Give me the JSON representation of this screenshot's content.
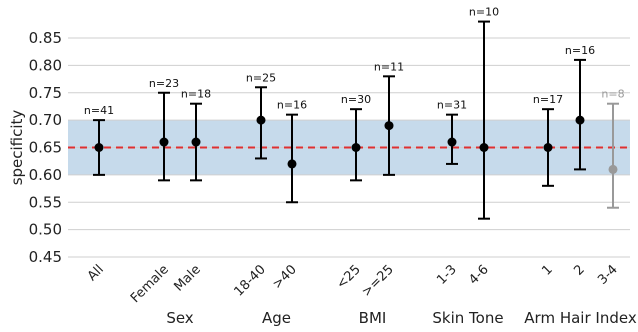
{
  "chart_data": {
    "type": "scatter",
    "title": "",
    "ylabel": "specificity",
    "ylim": [
      0.45,
      0.88
    ],
    "yticks": [
      "0.45",
      "0.50",
      "0.55",
      "0.60",
      "0.65",
      "0.70",
      "0.75",
      "0.80",
      "0.85"
    ],
    "reference_line": {
      "value": 0.65,
      "color": "#e03030",
      "style": "dashed"
    },
    "reference_band": {
      "low": 0.6,
      "high": 0.7,
      "color": "#bcd4e8"
    },
    "groups": [
      {
        "name": "",
        "members": [
          "All"
        ]
      },
      {
        "name": "Sex",
        "members": [
          "Female",
          "Male"
        ]
      },
      {
        "name": "Age",
        "members": [
          "18-40",
          ">40"
        ]
      },
      {
        "name": "BMI",
        "members": [
          "<25",
          ">=25"
        ]
      },
      {
        "name": "Skin Tone",
        "members": [
          "1-3",
          "4-6"
        ]
      },
      {
        "name": "Arm Hair Index",
        "members": [
          "1",
          "2",
          "3-4"
        ]
      }
    ],
    "points": [
      {
        "category": "All",
        "value": 0.65,
        "low": 0.6,
        "high": 0.7,
        "n_label": "n=41",
        "color": "#000000"
      },
      {
        "category": "Female",
        "value": 0.66,
        "low": 0.59,
        "high": 0.75,
        "n_label": "n=23",
        "color": "#000000"
      },
      {
        "category": "Male",
        "value": 0.66,
        "low": 0.59,
        "high": 0.73,
        "n_label": "n=18",
        "color": "#000000"
      },
      {
        "category": "18-40",
        "value": 0.7,
        "low": 0.63,
        "high": 0.76,
        "n_label": "n=25",
        "color": "#000000"
      },
      {
        "category": ">40",
        "value": 0.62,
        "low": 0.55,
        "high": 0.71,
        "n_label": "n=16",
        "color": "#000000"
      },
      {
        "category": "<25",
        "value": 0.65,
        "low": 0.59,
        "high": 0.72,
        "n_label": "n=30",
        "color": "#000000"
      },
      {
        "category": ">=25",
        "value": 0.69,
        "low": 0.6,
        "high": 0.78,
        "n_label": "n=11",
        "color": "#000000"
      },
      {
        "category": "1-3",
        "value": 0.66,
        "low": 0.62,
        "high": 0.71,
        "n_label": "n=31",
        "color": "#000000"
      },
      {
        "category": "4-6",
        "value": 0.65,
        "low": 0.52,
        "high": 0.88,
        "n_label": "n=10",
        "color": "#000000"
      },
      {
        "category": "1",
        "value": 0.65,
        "low": 0.58,
        "high": 0.72,
        "n_label": "n=17",
        "color": "#000000"
      },
      {
        "category": "2",
        "value": 0.7,
        "low": 0.61,
        "high": 0.81,
        "n_label": "n=16",
        "color": "#000000"
      },
      {
        "category": "3-4",
        "value": 0.61,
        "low": 0.54,
        "high": 0.73,
        "n_label": "n=8",
        "color": "#999999"
      }
    ]
  }
}
